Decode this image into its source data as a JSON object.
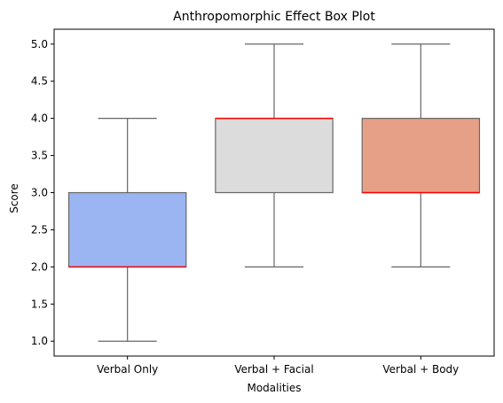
{
  "chart_data": {
    "type": "box",
    "title": "Anthropomorphic Effect Box Plot",
    "xlabel": "Modalities",
    "ylabel": "Score",
    "ylim": [
      0.8,
      5.2
    ],
    "yticks": [
      1.0,
      1.5,
      2.0,
      2.5,
      3.0,
      3.5,
      4.0,
      4.5,
      5.0
    ],
    "ytick_labels": [
      "1.0",
      "1.5",
      "2.0",
      "2.5",
      "3.0",
      "3.5",
      "4.0",
      "4.5",
      "5.0"
    ],
    "grid": false,
    "categories": [
      "Verbal Only",
      "Verbal + Facial",
      "Verbal + Body"
    ],
    "boxes": [
      {
        "category": "Verbal Only",
        "min": 1.0,
        "q1": 2.0,
        "median": 2.0,
        "q3": 3.0,
        "max": 4.0,
        "color": "#9bb5f2"
      },
      {
        "category": "Verbal + Facial",
        "min": 2.0,
        "q1": 3.0,
        "median": 4.0,
        "q3": 4.0,
        "max": 5.0,
        "color": "#dcdcdc"
      },
      {
        "category": "Verbal + Body",
        "min": 2.0,
        "q1": 3.0,
        "median": 3.0,
        "q3": 4.0,
        "max": 5.0,
        "color": "#e6a088"
      }
    ],
    "median_color": "#ff0000",
    "line_color": "#666666"
  }
}
